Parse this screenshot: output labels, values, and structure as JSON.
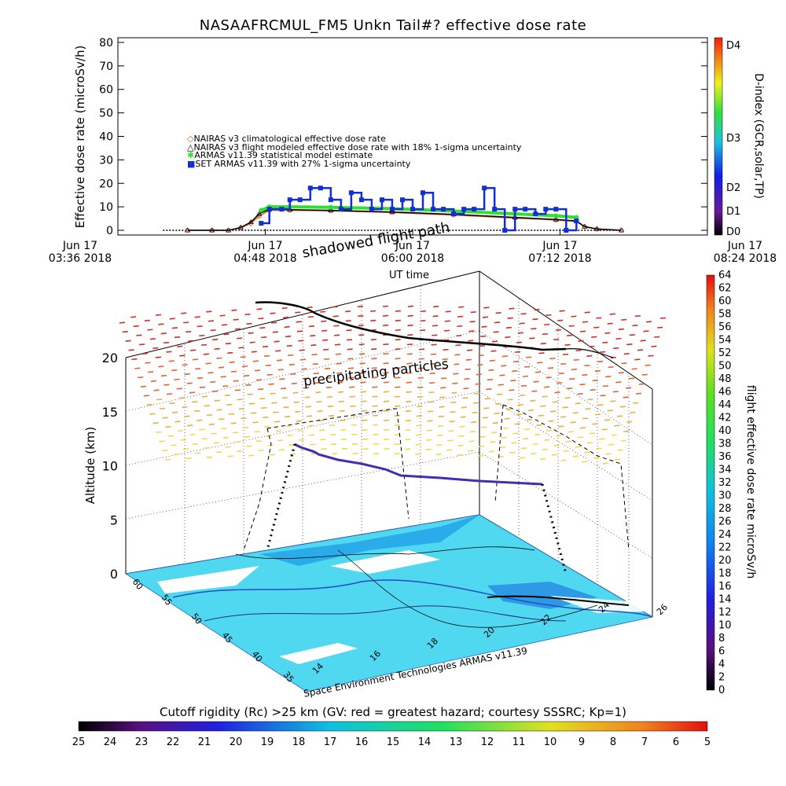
{
  "title": "NASAAFRCMUL_FM5 Unkn Tail#? effective dose rate",
  "top_chart": {
    "ylabel": "Effective dose rate (microSv/h)",
    "xlabel": "UT time",
    "right_label": "D-index (GCR,solar,TP)",
    "legend": [
      "NAIRAS v3 climatological effective dose rate",
      "NAIRAS v3 flight modeled effective dose rate with 18% 1-sigma uncertainty",
      "ARMAS v11.39 statistical model estimate",
      "SET ARMAS v11.39 with 27% 1-sigma uncertainty"
    ]
  },
  "chart_data": [
    {
      "type": "line",
      "title": "NASAAFRCMUL_FM5 Unkn Tail#? effective dose rate",
      "xlabel": "UT time",
      "ylabel": "Effective dose rate (microSv/h)",
      "x_ticks": [
        [
          "Jun 17",
          "03:36 2018"
        ],
        [
          "Jun 17",
          "04:48 2018"
        ],
        [
          "Jun 17",
          "06:00 2018"
        ],
        [
          "Jun 17",
          "07:12 2018"
        ],
        [
          "Jun 17",
          "08:24 2018"
        ]
      ],
      "x_tick_minutes": [
        216,
        288,
        360,
        432,
        504
      ],
      "y_ticks": [
        0,
        10,
        20,
        30,
        40,
        50,
        60,
        70,
        80
      ],
      "ylim": [
        -2,
        82
      ],
      "xlim_minutes": [
        216,
        504
      ],
      "right_axis": {
        "label": "D-index (GCR,solar,TP)",
        "ticks": [
          "D0",
          "D1",
          "D2",
          "D3",
          "D4"
        ]
      },
      "series": [
        {
          "name": "NAIRAS v3 climatological effective dose rate",
          "color": "#e06030",
          "x_minutes": [
            250,
            262,
            270,
            276,
            281,
            285,
            290,
            300,
            320,
            350,
            380,
            410,
            430,
            440,
            444,
            450,
            462
          ],
          "values": [
            0,
            0,
            0,
            1,
            3,
            6,
            8.5,
            8.5,
            8.3,
            7.6,
            6.5,
            5.2,
            4.4,
            3.8,
            1.5,
            0.5,
            0
          ]
        },
        {
          "name": "NAIRAS v3 flight modeled effective dose rate with 18% 1-sigma uncertainty",
          "color": "#000000",
          "x_minutes": [
            250,
            262,
            270,
            276,
            281,
            285,
            290,
            300,
            320,
            350,
            380,
            410,
            430,
            440,
            444,
            450,
            462
          ],
          "values": [
            0,
            0,
            0,
            1.2,
            3.5,
            7,
            9,
            8.8,
            8.5,
            7.8,
            6.8,
            5.5,
            4.6,
            4.0,
            1.6,
            0.6,
            0
          ]
        },
        {
          "name": "ARMAS v11.39 statistical model estimate",
          "color": "#30e030",
          "x_minutes": [
            286,
            290,
            300,
            320,
            350,
            380,
            410,
            430,
            440
          ],
          "values": [
            8.5,
            10,
            10,
            9.8,
            9.2,
            8.2,
            7.0,
            6.2,
            5.5
          ]
        },
        {
          "name": "SET ARMAS v11.39 with 27% 1-sigma uncertainty",
          "color": "#1030d0",
          "x_minutes": [
            286,
            290,
            296,
            300,
            305,
            310,
            315,
            320,
            325,
            330,
            335,
            340,
            345,
            350,
            355,
            360,
            365,
            370,
            375,
            380,
            385,
            390,
            395,
            400,
            405,
            410,
            415,
            420,
            425,
            430,
            435,
            440
          ],
          "values": [
            3,
            9,
            9,
            13,
            13,
            18,
            18,
            13,
            9,
            16,
            13,
            9,
            13,
            9,
            13,
            9,
            16,
            9,
            9,
            7,
            9,
            9,
            18,
            9,
            0,
            9,
            9,
            7,
            9,
            9,
            0,
            4
          ]
        }
      ]
    },
    {
      "type": "scatter",
      "title": "",
      "xlabel": "",
      "ylabel": "Altitude (km)",
      "z_ticks": [
        0,
        5,
        10,
        15,
        20
      ],
      "lat_ticks": [
        35,
        40,
        45,
        50,
        55,
        60
      ],
      "lon_ticks": [
        14,
        16,
        18,
        20,
        22,
        24,
        26
      ],
      "annotations": [
        "shadowed flight path",
        "precipitating particles"
      ],
      "credit": "Space Environment Technologies ARMAS v11.39",
      "colorbar_right": {
        "label": "flight effective dose rate microSv/h",
        "ticks": [
          0,
          2,
          4,
          6,
          8,
          10,
          12,
          14,
          16,
          18,
          20,
          22,
          24,
          26,
          28,
          30,
          32,
          34,
          36,
          38,
          40,
          42,
          44,
          46,
          48,
          50,
          52,
          54,
          56,
          58,
          60,
          62,
          64
        ],
        "range": [
          0,
          64
        ]
      },
      "colorbar_bottom": {
        "label": "Cutoff rigidity (Rc) >25 km (GV: red = greatest hazard; courtesy SSSRC; Kp=1)",
        "ticks": [
          25,
          24,
          23,
          22,
          21,
          20,
          19,
          18,
          17,
          16,
          15,
          14,
          13,
          12,
          11,
          10,
          9,
          8,
          7,
          6,
          5
        ],
        "range": [
          25,
          5
        ]
      }
    }
  ]
}
